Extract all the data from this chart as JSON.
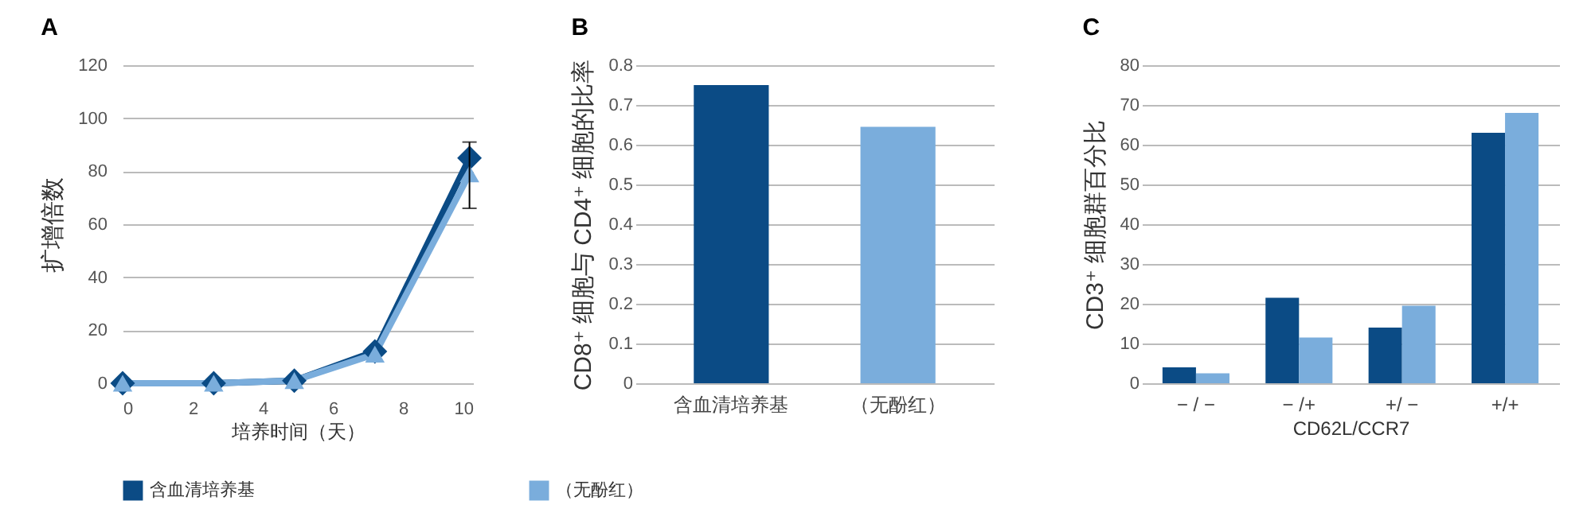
{
  "chart_data": [
    {
      "type": "line",
      "title": "A",
      "xlabel": "培养时间（天）",
      "ylabel": "扩增倍数",
      "x": [
        0,
        2.6,
        4.9,
        7.2,
        9.9
      ],
      "xlim": [
        0,
        10
      ],
      "xticks": [
        0,
        2,
        4,
        6,
        8,
        10
      ],
      "ylim": [
        0,
        120
      ],
      "yticks": [
        0,
        20,
        40,
        60,
        80,
        100,
        120
      ],
      "grid": "y",
      "legend": "bottom",
      "series": [
        {
          "name": "含血清培养基",
          "color": "#0b4b85",
          "values": [
            0,
            0,
            1,
            12,
            85
          ],
          "marker": "diamond"
        },
        {
          "name": "（无酚红）",
          "color": "#7aaddc",
          "values": [
            0,
            0,
            1,
            11,
            79
          ],
          "marker": "triangle",
          "errors": [
            null,
            null,
            null,
            null,
            [
              66,
              91
            ]
          ]
        }
      ]
    },
    {
      "type": "bar",
      "title": "B",
      "ylabel": "CD8⁺ 细胞与 CD4⁺ 细胞的比率",
      "categories": [
        "含血清培养基",
        "（无酚红）"
      ],
      "values": [
        0.75,
        0.645
      ],
      "colors": [
        "#0b4b85",
        "#7aaddc"
      ],
      "ylim": [
        0,
        0.8
      ],
      "yticks": [
        0,
        0.1,
        0.2,
        0.3,
        0.4,
        0.5,
        0.6,
        0.7,
        0.8
      ],
      "grid": "y"
    },
    {
      "type": "bar",
      "title": "C",
      "xlabel": "CD62L/CCR7",
      "ylabel": "CD3⁺ 细胞群百分比",
      "categories": [
        "− / −",
        "− /+",
        "+/ −",
        "+/+"
      ],
      "ylim": [
        0,
        80
      ],
      "yticks": [
        0,
        10,
        20,
        30,
        40,
        50,
        60,
        70,
        80
      ],
      "grid": "y",
      "series": [
        {
          "name": "含血清培养基",
          "color": "#0b4b85",
          "values": [
            4,
            21.5,
            14,
            63
          ]
        },
        {
          "name": "（无酚红）",
          "color": "#7aaddc",
          "values": [
            2.5,
            11.5,
            19.5,
            68
          ]
        }
      ]
    }
  ]
}
